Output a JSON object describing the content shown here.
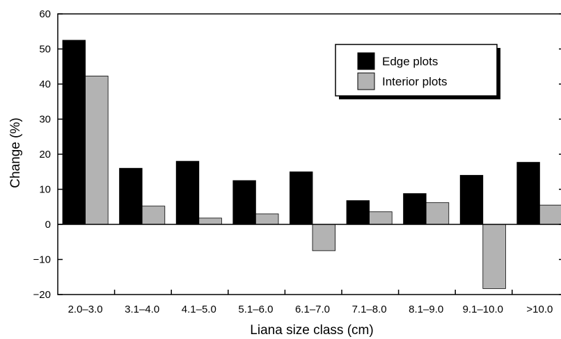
{
  "chart_data": {
    "type": "bar",
    "title": "",
    "xlabel": "Liana size class (cm)",
    "ylabel": "Change (%)",
    "ylim": [
      -20,
      60
    ],
    "yticks": [
      -20,
      -10,
      0,
      10,
      20,
      30,
      40,
      50,
      60
    ],
    "ytick_labels": [
      "−20",
      "−10",
      "0",
      "10",
      "20",
      "30",
      "40",
      "50",
      "60"
    ],
    "categories": [
      "2.0–3.0",
      "3.1–4.0",
      "4.1–5.0",
      "5.1–6.0",
      "6.1–7.0",
      "7.1–8.0",
      "8.1–9.0",
      "9.1–10.0",
      ">10.0"
    ],
    "series": [
      {
        "name": "Edge plots",
        "color": "#000000",
        "values": [
          52.5,
          16.0,
          18.0,
          12.5,
          15.0,
          6.8,
          8.8,
          14.0,
          17.7
        ]
      },
      {
        "name": "Interior plots",
        "color": "#b3b3b3",
        "values": [
          42.3,
          5.2,
          1.8,
          3.0,
          -7.5,
          3.6,
          6.2,
          -18.3,
          5.5
        ]
      }
    ],
    "legend_position": "top-right",
    "grid": false
  }
}
